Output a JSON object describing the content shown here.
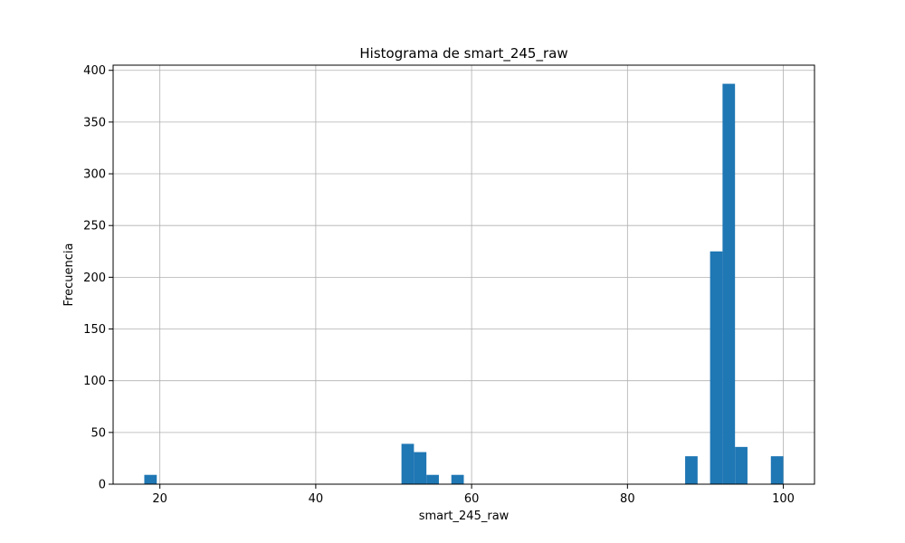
{
  "chart_data": {
    "type": "bar",
    "title": "Histograma de smart_245_raw",
    "xlabel": "smart_245_raw",
    "ylabel": "Frecuencia",
    "xlim": [
      14,
      104
    ],
    "ylim": [
      0,
      405
    ],
    "xticks": [
      20,
      40,
      60,
      80,
      100
    ],
    "yticks": [
      0,
      50,
      100,
      150,
      200,
      250,
      300,
      350,
      400
    ],
    "grid": true,
    "color": "#1f77b4",
    "bins": [
      {
        "x0": 18.0,
        "x1": 19.6,
        "count": 9
      },
      {
        "x0": 51.0,
        "x1": 52.6,
        "count": 39
      },
      {
        "x0": 52.6,
        "x1": 54.2,
        "count": 31
      },
      {
        "x0": 54.2,
        "x1": 55.8,
        "count": 9
      },
      {
        "x0": 57.4,
        "x1": 59.0,
        "count": 9
      },
      {
        "x0": 87.4,
        "x1": 89.0,
        "count": 27
      },
      {
        "x0": 90.6,
        "x1": 92.2,
        "count": 225
      },
      {
        "x0": 92.2,
        "x1": 93.8,
        "count": 387
      },
      {
        "x0": 93.8,
        "x1": 95.4,
        "count": 36
      },
      {
        "x0": 98.4,
        "x1": 100.0,
        "count": 27
      }
    ]
  }
}
